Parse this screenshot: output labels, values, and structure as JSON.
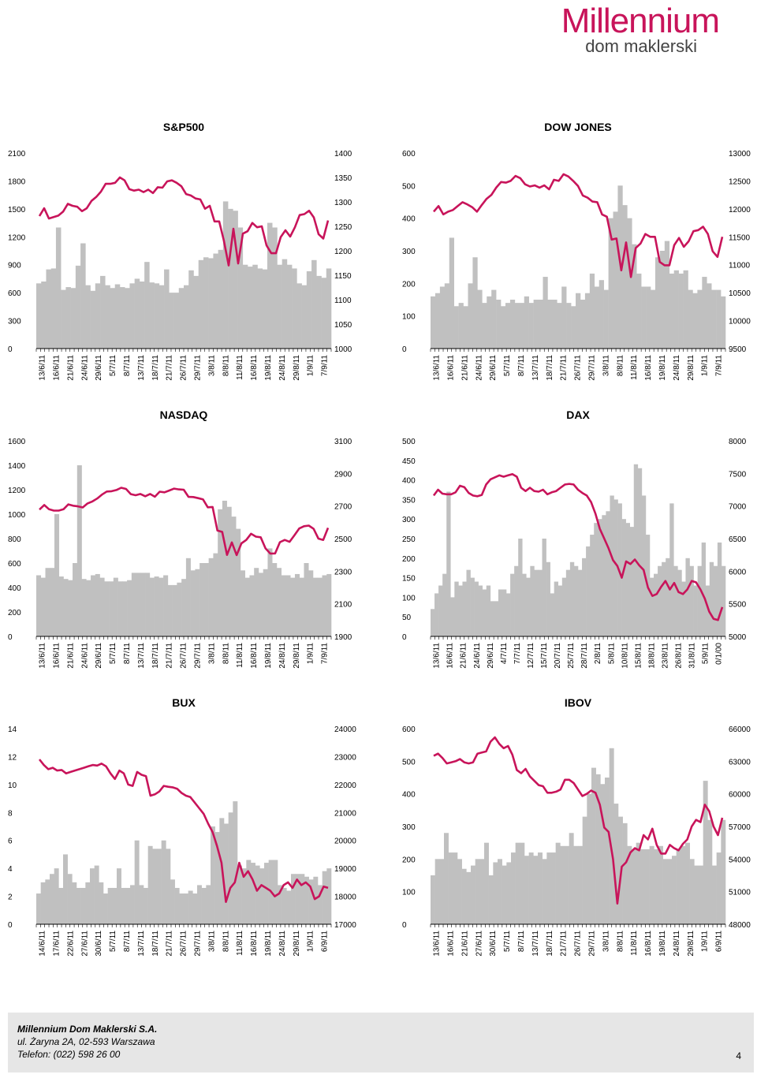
{
  "brand": {
    "name": "Millennium",
    "sub": "dom maklerski"
  },
  "footer": {
    "company": "Millennium Dom Maklerski S.A.",
    "address": "ul. Żaryna 2A, 02-593 Warszawa",
    "phone": "Telefon: (022) 598 26 00",
    "page": "4"
  },
  "colors": {
    "bar": "#c0c0c0",
    "line": "#c8145a",
    "axis": "#000000"
  },
  "chart_data": [
    {
      "id": "sp500",
      "type": "bar+line",
      "title": "S&P500",
      "left_ticks": [
        "0",
        "300",
        "600",
        "900",
        "1200",
        "1500",
        "1800",
        "2100"
      ],
      "left_range": [
        0,
        2100
      ],
      "right_ticks": [
        "1000",
        "1050",
        "1100",
        "1150",
        "1200",
        "1250",
        "1300",
        "1350",
        "1400"
      ],
      "right_range": [
        1000,
        1400
      ],
      "x_labels": [
        "13/6/11",
        "16/6/11",
        "21/6/11",
        "24/6/11",
        "29/6/11",
        "5/7/11",
        "8/7/11",
        "13/7/11",
        "18/7/11",
        "21/7/11",
        "26/7/11",
        "29/7/11",
        "3/8/11",
        "8/8/11",
        "11/8/11",
        "16/8/11",
        "19/8/11",
        "24/8/11",
        "29/8/11",
        "1/9/11",
        "7/9/11"
      ],
      "bar_values": [
        700,
        720,
        850,
        860,
        1300,
        630,
        660,
        650,
        890,
        1130,
        680,
        620,
        700,
        780,
        680,
        650,
        690,
        660,
        650,
        700,
        750,
        720,
        930,
        710,
        700,
        680,
        850,
        600,
        600,
        650,
        680,
        840,
        780,
        950,
        980,
        970,
        1020,
        1060,
        1580,
        1500,
        1480,
        1300,
        900,
        880,
        900,
        860,
        850,
        1350,
        1300,
        900,
        960,
        900,
        860,
        700,
        680,
        830,
        950,
        780,
        760,
        860
      ],
      "line_values": [
        1271,
        1287,
        1266,
        1269,
        1272,
        1280,
        1296,
        1292,
        1290,
        1281,
        1287,
        1302,
        1310,
        1321,
        1337,
        1337,
        1339,
        1350,
        1344,
        1326,
        1323,
        1325,
        1320,
        1325,
        1318,
        1330,
        1329,
        1342,
        1344,
        1339,
        1332,
        1316,
        1313,
        1307,
        1305,
        1286,
        1292,
        1260,
        1260,
        1220,
        1170,
        1245,
        1174,
        1235,
        1240,
        1257,
        1248,
        1250,
        1211,
        1195,
        1195,
        1228,
        1242,
        1229,
        1248,
        1273,
        1275,
        1282,
        1268,
        1234,
        1225,
        1262
      ]
    },
    {
      "id": "dowjones",
      "type": "bar+line",
      "title": "DOW JONES",
      "left_ticks": [
        "0",
        "100",
        "200",
        "300",
        "400",
        "500",
        "600"
      ],
      "left_range": [
        0,
        600
      ],
      "right_ticks": [
        "9500",
        "10000",
        "10500",
        "11000",
        "11500",
        "12000",
        "12500",
        "13000"
      ],
      "right_range": [
        9500,
        13000
      ],
      "x_labels": [
        "13/6/11",
        "16/6/11",
        "21/6/11",
        "24/6/11",
        "29/6/11",
        "5/7/11",
        "8/7/11",
        "13/7/11",
        "18/7/11",
        "21/7/11",
        "26/7/11",
        "29/7/11",
        "3/8/11",
        "8/8/11",
        "11/8/11",
        "16/8/11",
        "19/8/11",
        "24/8/11",
        "29/8/11",
        "1/9/11",
        "7/9/11"
      ],
      "bar_values": [
        160,
        170,
        190,
        200,
        340,
        130,
        140,
        130,
        200,
        280,
        180,
        140,
        160,
        180,
        150,
        130,
        140,
        150,
        140,
        140,
        160,
        140,
        150,
        150,
        220,
        150,
        150,
        140,
        190,
        140,
        130,
        170,
        150,
        170,
        230,
        190,
        210,
        180,
        400,
        420,
        500,
        440,
        400,
        320,
        230,
        190,
        190,
        180,
        280,
        300,
        330,
        230,
        240,
        230,
        240,
        180,
        170,
        180,
        220,
        200,
        180,
        180,
        160
      ],
      "line_values": [
        11950,
        12050,
        11900,
        11950,
        11980,
        12050,
        12120,
        12080,
        12030,
        11950,
        12070,
        12180,
        12250,
        12380,
        12480,
        12470,
        12500,
        12590,
        12550,
        12440,
        12400,
        12420,
        12380,
        12420,
        12350,
        12520,
        12500,
        12620,
        12580,
        12500,
        12410,
        12240,
        12200,
        12130,
        12120,
        11900,
        11860,
        11450,
        11470,
        10900,
        11400,
        10780,
        11300,
        11380,
        11550,
        11500,
        11500,
        11050,
        10990,
        10990,
        11350,
        11480,
        11320,
        11420,
        11600,
        11620,
        11680,
        11550,
        11240,
        11140,
        11500
      ]
    },
    {
      "id": "nasdaq",
      "type": "bar+line",
      "title": "NASDAQ",
      "left_ticks": [
        "0",
        "200",
        "400",
        "600",
        "800",
        "1000",
        "1200",
        "1400",
        "1600"
      ],
      "left_range": [
        0,
        1600
      ],
      "right_ticks": [
        "1900",
        "2100",
        "2300",
        "2500",
        "2700",
        "2900",
        "3100"
      ],
      "right_range": [
        1900,
        3100
      ],
      "x_labels": [
        "13/6/11",
        "16/6/11",
        "21/6/11",
        "24/6/11",
        "29/6/11",
        "5/7/11",
        "8/7/11",
        "13/7/11",
        "18/7/11",
        "21/7/11",
        "26/7/11",
        "29/7/11",
        "3/8/11",
        "8/8/11",
        "11/8/11",
        "16/8/11",
        "19/8/11",
        "24/8/11",
        "29/8/11",
        "1/9/11",
        "7/9/11"
      ],
      "bar_values": [
        500,
        480,
        560,
        560,
        1000,
        490,
        470,
        460,
        600,
        1400,
        470,
        460,
        500,
        510,
        480,
        450,
        450,
        480,
        450,
        450,
        460,
        520,
        520,
        520,
        520,
        480,
        490,
        480,
        500,
        420,
        420,
        440,
        470,
        640,
        540,
        550,
        600,
        600,
        640,
        680,
        1040,
        1110,
        1060,
        980,
        880,
        540,
        480,
        500,
        560,
        520,
        550,
        720,
        600,
        560,
        500,
        500,
        480,
        510,
        480,
        600,
        540,
        480,
        480,
        500,
        510
      ],
      "line_values": [
        2678,
        2706,
        2680,
        2672,
        2672,
        2680,
        2710,
        2702,
        2698,
        2691,
        2716,
        2728,
        2746,
        2770,
        2789,
        2791,
        2798,
        2812,
        2805,
        2773,
        2766,
        2774,
        2760,
        2774,
        2757,
        2788,
        2784,
        2795,
        2807,
        2802,
        2800,
        2756,
        2755,
        2748,
        2741,
        2692,
        2694,
        2550,
        2541,
        2400,
        2477,
        2399,
        2471,
        2492,
        2530,
        2512,
        2508,
        2440,
        2408,
        2409,
        2478,
        2492,
        2480,
        2520,
        2562,
        2576,
        2580,
        2560,
        2500,
        2492,
        2566
      ]
    },
    {
      "id": "dax",
      "type": "bar+line",
      "title": "DAX",
      "left_ticks": [
        "0",
        "50",
        "100",
        "150",
        "200",
        "250",
        "300",
        "350",
        "400",
        "450",
        "500"
      ],
      "left_range": [
        0,
        500
      ],
      "right_ticks": [
        "5000",
        "5500",
        "6000",
        "6500",
        "7000",
        "7500",
        "8000"
      ],
      "right_range": [
        5000,
        8000
      ],
      "x_labels": [
        "13/6/11",
        "16/6/11",
        "21/6/11",
        "24/6/11",
        "29/6/11",
        "4/7/11",
        "7/7/11",
        "12/7/11",
        "15/7/11",
        "20/7/11",
        "25/7/11",
        "28/7/11",
        "2/8/11",
        "5/8/11",
        "10/8/11",
        "15/8/11",
        "18/8/11",
        "23/8/11",
        "26/8/11",
        "31/8/11",
        "5/9/11",
        "0/1/00"
      ],
      "bar_values": [
        70,
        110,
        130,
        160,
        370,
        100,
        140,
        130,
        140,
        170,
        150,
        140,
        130,
        120,
        130,
        90,
        90,
        120,
        120,
        110,
        160,
        180,
        250,
        160,
        150,
        180,
        170,
        170,
        250,
        190,
        110,
        140,
        130,
        150,
        170,
        190,
        180,
        170,
        200,
        230,
        260,
        290,
        300,
        310,
        320,
        360,
        350,
        340,
        300,
        290,
        280,
        440,
        430,
        360,
        260,
        150,
        160,
        180,
        190,
        200,
        340,
        180,
        170,
        140,
        200,
        180,
        130,
        180,
        240,
        130,
        190,
        180,
        240,
        180
      ],
      "line_values": [
        7160,
        7250,
        7190,
        7180,
        7180,
        7210,
        7310,
        7290,
        7200,
        7160,
        7150,
        7170,
        7330,
        7410,
        7440,
        7470,
        7450,
        7470,
        7490,
        7450,
        7280,
        7230,
        7280,
        7230,
        7220,
        7250,
        7180,
        7210,
        7230,
        7280,
        7330,
        7340,
        7330,
        7250,
        7200,
        7160,
        7060,
        6880,
        6650,
        6500,
        6350,
        6170,
        6080,
        5900,
        6150,
        6110,
        6180,
        6090,
        6020,
        5750,
        5620,
        5650,
        5760,
        5850,
        5720,
        5820,
        5680,
        5650,
        5720,
        5850,
        5830,
        5720,
        5580,
        5380,
        5270,
        5250,
        5450
      ]
    },
    {
      "id": "bux",
      "type": "bar+line",
      "title": "BUX",
      "left_ticks": [
        "0",
        "2",
        "4",
        "6",
        "8",
        "10",
        "12",
        "14"
      ],
      "left_range": [
        0,
        14
      ],
      "right_ticks": [
        "17000",
        "18000",
        "19000",
        "20000",
        "21000",
        "22000",
        "23000",
        "24000"
      ],
      "right_range": [
        17000,
        24000
      ],
      "x_labels": [
        "14/6/11",
        "17/6/11",
        "22/6/11",
        "27/6/11",
        "30/6/11",
        "5/7/11",
        "8/7/11",
        "13/7/11",
        "18/7/11",
        "21/7/11",
        "26/7/11",
        "29/7/11",
        "3/8/11",
        "8/8/11",
        "11/8/11",
        "16/8/11",
        "19/8/11",
        "24/8/11",
        "29/8/11",
        "1/9/11",
        "6/9/11"
      ],
      "bar_values": [
        2.2,
        3.0,
        3.2,
        3.6,
        4.0,
        2.6,
        5.0,
        3.6,
        3.0,
        2.6,
        2.6,
        3.0,
        4.0,
        4.2,
        3.0,
        2.2,
        2.6,
        2.6,
        4.0,
        2.6,
        2.6,
        2.8,
        6.0,
        2.8,
        2.6,
        5.6,
        5.4,
        5.4,
        6.0,
        5.4,
        3.2,
        2.6,
        2.2,
        2.2,
        2.4,
        2.2,
        2.8,
        2.6,
        2.8,
        7.0,
        6.6,
        7.6,
        7.2,
        8.0,
        8.8,
        4.2,
        4.0,
        4.6,
        4.4,
        4.2,
        4.0,
        4.4,
        4.6,
        4.6,
        2.8,
        2.6,
        2.4,
        3.6,
        3.6,
        3.6,
        3.4,
        3.2,
        3.4,
        2.8,
        3.8,
        4.0
      ],
      "line_values": [
        22900,
        22700,
        22550,
        22600,
        22500,
        22520,
        22400,
        22450,
        22500,
        22550,
        22600,
        22650,
        22700,
        22680,
        22750,
        22650,
        22400,
        22200,
        22500,
        22400,
        22000,
        21950,
        22450,
        22350,
        22300,
        21600,
        21650,
        21750,
        21950,
        21920,
        21900,
        21850,
        21700,
        21600,
        21550,
        21350,
        21150,
        20950,
        20600,
        20300,
        19800,
        19200,
        17800,
        18300,
        18500,
        19200,
        18700,
        18900,
        18600,
        18200,
        18400,
        18300,
        18200,
        18000,
        18100,
        18400,
        18500,
        18300,
        18600,
        18400,
        18500,
        18350,
        17900,
        18000,
        18350,
        18300
      ]
    },
    {
      "id": "ibov",
      "type": "bar+line",
      "title": "IBOV",
      "left_ticks": [
        "0",
        "100",
        "200",
        "300",
        "400",
        "500",
        "600"
      ],
      "left_range": [
        0,
        600
      ],
      "right_ticks": [
        "48000",
        "51000",
        "54000",
        "57000",
        "60000",
        "63000",
        "66000"
      ],
      "right_range": [
        48000,
        66000
      ],
      "x_labels": [
        "13/6/11",
        "16/6/11",
        "21/6/11",
        "27/6/11",
        "30/6/11",
        "5/7/11",
        "8/7/11",
        "13/7/11",
        "18/7/11",
        "21/7/11",
        "26/7/11",
        "29/7/11",
        "3/8/11",
        "8/8/11",
        "11/8/11",
        "16/8/11",
        "19/8/11",
        "24/8/11",
        "29/8/11",
        "1/9/11",
        "6/9/11"
      ],
      "bar_values": [
        150,
        200,
        200,
        280,
        220,
        220,
        200,
        170,
        160,
        180,
        200,
        200,
        250,
        150,
        190,
        200,
        180,
        190,
        220,
        250,
        250,
        210,
        220,
        210,
        220,
        200,
        220,
        220,
        250,
        240,
        240,
        280,
        240,
        240,
        330,
        400,
        480,
        460,
        430,
        450,
        540,
        370,
        330,
        310,
        240,
        230,
        250,
        230,
        230,
        240,
        230,
        240,
        200,
        200,
        210,
        230,
        240,
        250,
        200,
        180,
        180,
        440,
        320,
        180,
        220,
        320
      ],
      "line_values": [
        63500,
        63700,
        63300,
        62800,
        62900,
        63000,
        63200,
        62900,
        62800,
        62900,
        63700,
        63800,
        63900,
        64800,
        65200,
        64600,
        64200,
        64400,
        63600,
        62200,
        61900,
        62300,
        61600,
        61200,
        60800,
        60700,
        60100,
        60100,
        60200,
        60400,
        61300,
        61300,
        61000,
        60400,
        59800,
        60000,
        60300,
        60100,
        59000,
        56900,
        56500,
        54000,
        49900,
        53300,
        53700,
        54600,
        55000,
        54800,
        56200,
        55800,
        56800,
        55300,
        54500,
        54500,
        55300,
        55000,
        54800,
        55400,
        55800,
        57000,
        57600,
        57400,
        59000,
        58400,
        57000,
        56200,
        57800
      ]
    }
  ]
}
